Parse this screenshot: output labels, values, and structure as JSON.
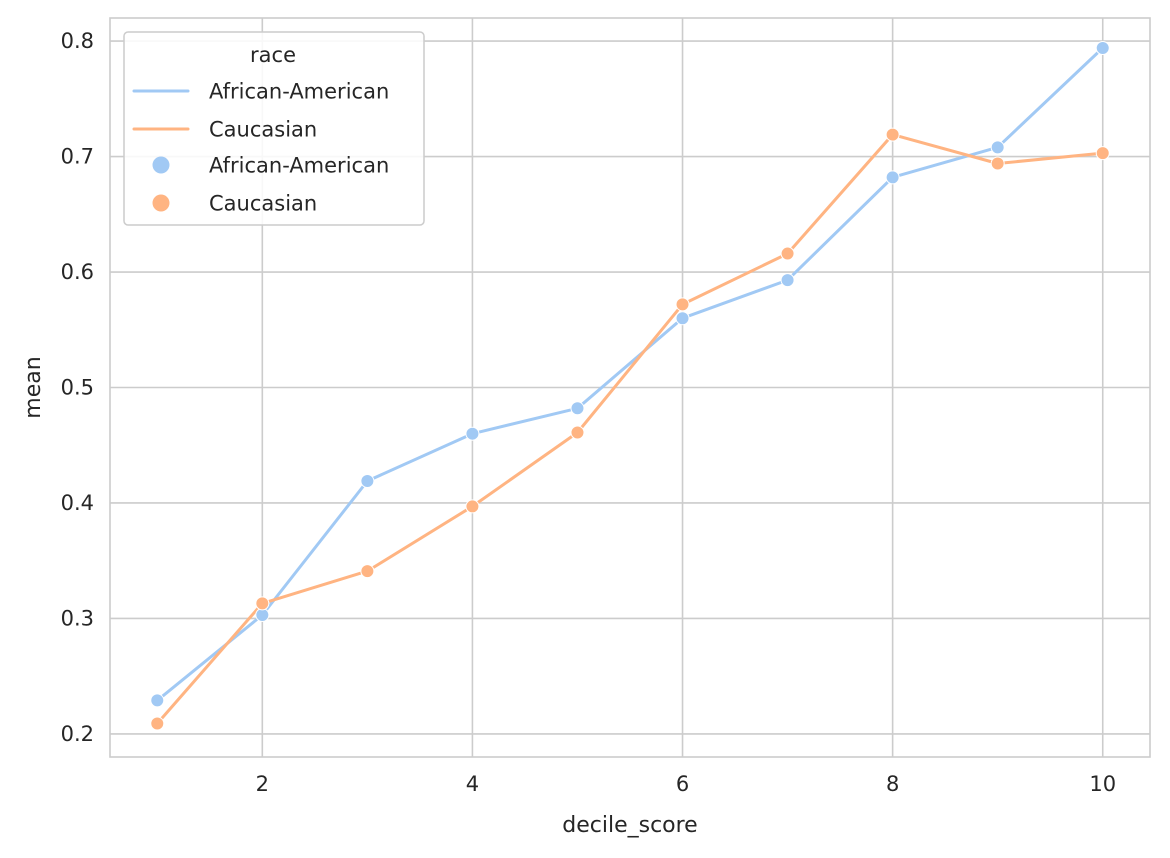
{
  "chart_data": {
    "type": "line",
    "x": [
      1,
      2,
      3,
      4,
      5,
      6,
      7,
      8,
      9,
      10
    ],
    "series": [
      {
        "name": "African-American",
        "color": "#a1c9f4",
        "values": [
          0.229,
          0.303,
          0.419,
          0.46,
          0.482,
          0.56,
          0.593,
          0.682,
          0.708,
          0.794
        ]
      },
      {
        "name": "Caucasian",
        "color": "#ffb482",
        "values": [
          0.209,
          0.313,
          0.341,
          0.397,
          0.461,
          0.572,
          0.616,
          0.719,
          0.694,
          0.703
        ]
      }
    ],
    "xlabel": "decile_score",
    "ylabel": "mean",
    "xlim": [
      0.55,
      10.45
    ],
    "ylim": [
      0.18,
      0.82
    ],
    "xticks": [
      2,
      4,
      6,
      8,
      10
    ],
    "xtick_labels": [
      "2",
      "4",
      "6",
      "8",
      "10"
    ],
    "yticks": [
      0.2,
      0.3,
      0.4,
      0.5,
      0.6,
      0.7,
      0.8
    ],
    "ytick_labels": [
      "0.2",
      "0.3",
      "0.4",
      "0.5",
      "0.6",
      "0.7",
      "0.8"
    ],
    "grid": true,
    "legend": {
      "title": "race",
      "placement": "top-left",
      "entries": [
        {
          "label": "African-American",
          "marker": "line",
          "color": "#a1c9f4"
        },
        {
          "label": "Caucasian",
          "marker": "line",
          "color": "#ffb482"
        },
        {
          "label": "African-American",
          "marker": "dot",
          "color": "#a1c9f4"
        },
        {
          "label": "Caucasian",
          "marker": "dot",
          "color": "#ffb482"
        }
      ]
    }
  }
}
